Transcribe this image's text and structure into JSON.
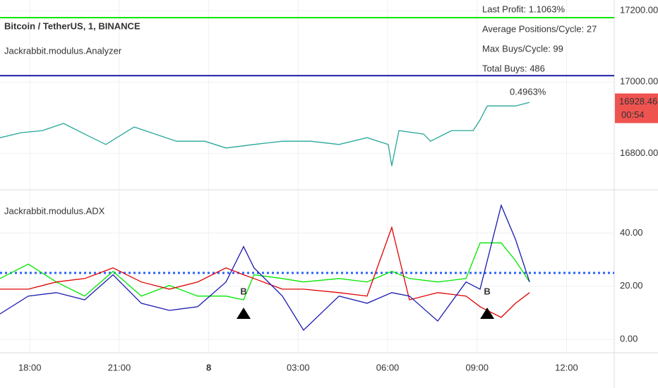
{
  "chart_data": [
    {
      "type": "line",
      "title": "Bitcoin / TetherUS, 1, BINANCE",
      "subtitle": "Jackrabbit.modulus.Analyzer",
      "x": [
        17.0,
        17.71,
        18.42,
        19.13,
        19.84,
        20.55,
        21.5,
        22.21,
        22.92,
        23.87,
        24.58,
        25.52,
        26.47,
        27.42,
        28.37,
        29.31,
        30.02,
        30.14,
        30.38,
        31.21,
        31.44,
        32.15,
        32.87,
        33.1,
        33.34,
        33.81,
        34.29,
        34.76
      ],
      "series": [
        {
          "color": "#26a69a",
          "values": [
            16844,
            16858,
            16864,
            16884,
            16854,
            16825,
            16874,
            16854,
            16834,
            16834,
            16815,
            16825,
            16834,
            16834,
            16825,
            16844,
            16825,
            16765,
            16864,
            16854,
            16834,
            16864,
            16864,
            16894,
            16933,
            16933,
            16933,
            16943
          ]
        }
      ],
      "hlines": [
        {
          "value": 17180.5,
          "color": "#00e600"
        },
        {
          "value": 17018,
          "color": "#1a1aa6"
        }
      ],
      "annotation": "0.4963%",
      "stats": [
        "Last Profit: 1.1063%",
        "Average Positions/Cycle: 27",
        "Max Buys/Cycle: 99",
        "Total Buys: 486"
      ],
      "last_price": 16928.46,
      "countdown": "00:54",
      "xlim": [
        17,
        37.6
      ],
      "ylim": [
        16700,
        17230
      ],
      "yticks": [
        {
          "value": 16800,
          "label": "16800.00"
        },
        {
          "value": 17000,
          "label": "17000.00"
        },
        {
          "value": 17200,
          "label": "17200.00"
        }
      ]
    },
    {
      "type": "line",
      "title": "Jackrabbit.modulus.ADX",
      "x": [
        17,
        17.95,
        18.89,
        19.84,
        20.79,
        21.74,
        22.68,
        23.63,
        24.58,
        25.17,
        25.52,
        26.47,
        27.18,
        28.37,
        29.31,
        30.14,
        30.73,
        31.68,
        32.63,
        33.1,
        33.81,
        34.29,
        34.76
      ],
      "series": [
        {
          "color": "#00e600",
          "values": [
            22.9,
            28.3,
            21.6,
            16.3,
            25.6,
            16.3,
            20.3,
            16.3,
            16.3,
            14.9,
            24.3,
            22.9,
            21.6,
            22.9,
            21.6,
            25.6,
            22.9,
            21.6,
            22.9,
            36.3,
            36.3,
            29.6,
            21.6
          ]
        },
        {
          "color": "#e00000",
          "values": [
            18.9,
            18.9,
            21.6,
            22.9,
            26.9,
            21.6,
            18.9,
            21.6,
            26.9,
            24.3,
            22.9,
            18.9,
            18.9,
            17.6,
            16.3,
            42.1,
            14.9,
            17.6,
            16.3,
            12.3,
            8.3,
            13.6,
            17.6
          ]
        },
        {
          "color": "#1a1ab0",
          "values": [
            9.6,
            16.3,
            17.6,
            14.9,
            24.3,
            13.6,
            10.9,
            12.3,
            21.6,
            34.9,
            26.9,
            16.3,
            3.5,
            16.3,
            13.6,
            17.6,
            16.3,
            6.9,
            21.6,
            18.9,
            50.4,
            37.6,
            21.6
          ]
        }
      ],
      "hlines": [
        {
          "value": 25,
          "color": "#2962ff"
        }
      ],
      "markers": [
        {
          "x": 25.17,
          "label": "B"
        },
        {
          "x": 33.34,
          "label": "B"
        }
      ],
      "xlim": [
        17,
        37.6
      ],
      "ylim": [
        -5,
        56
      ],
      "yticks": [
        {
          "value": 0,
          "label": "0.00"
        },
        {
          "value": 20,
          "label": "20.00"
        },
        {
          "value": 40,
          "label": "40.00"
        }
      ],
      "xticks": [
        {
          "value": 18,
          "label": "18:00"
        },
        {
          "value": 21,
          "label": "21:00"
        },
        {
          "value": 24,
          "label": "8"
        },
        {
          "value": 27,
          "label": "03:00"
        },
        {
          "value": 30,
          "label": "06:00"
        },
        {
          "value": 33,
          "label": "09:00"
        },
        {
          "value": 36,
          "label": "12:00"
        }
      ]
    }
  ]
}
